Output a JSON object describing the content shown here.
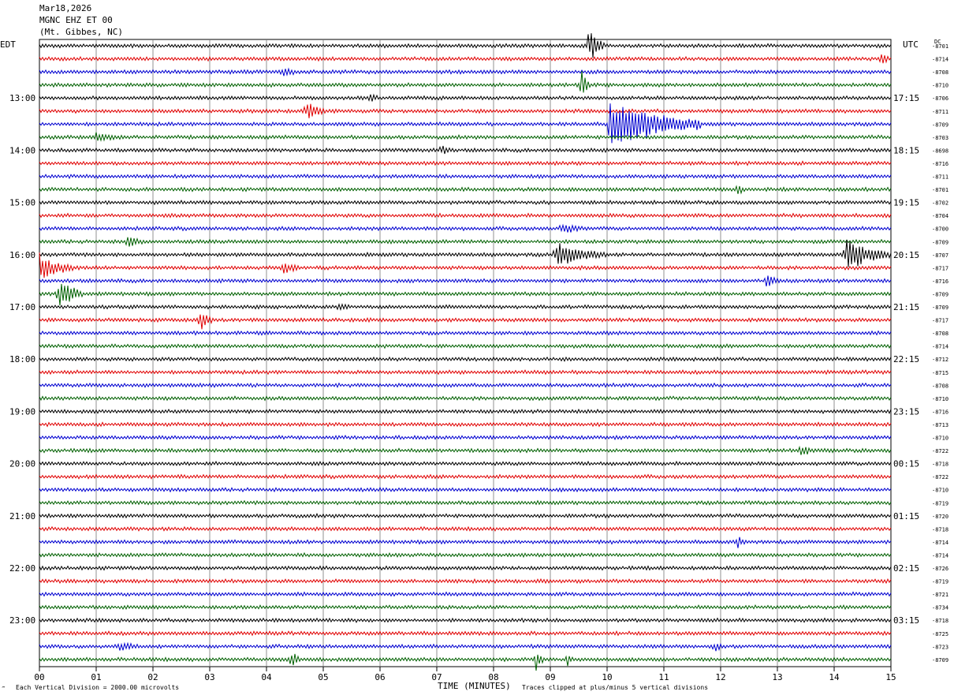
{
  "header": {
    "date": "Mar18,2026",
    "station": "MGNC EHZ ET 00",
    "location": "(Mt. Gibbes, NC)"
  },
  "left_tz": "EDT",
  "right_tz": "UTC",
  "dc_label": "DC",
  "footer": {
    "scale_note": "Each Vertical Division = 2000.00 microvolts",
    "clip_note": "Traces clipped at plus/minus 5 vertical divisions",
    "mark": "‴"
  },
  "colors": {
    "black": "#000000",
    "red": "#e00000",
    "blue": "#0000d0",
    "green": "#006000",
    "grid": "#777777"
  },
  "chart_data": {
    "type": "line",
    "title": "MGNC EHZ ET 00",
    "xlabel": "TIME (MINUTES)",
    "xlim": [
      0,
      15
    ],
    "x_ticks": [
      "00",
      "01",
      "02",
      "03",
      "04",
      "05",
      "06",
      "07",
      "08",
      "09",
      "10",
      "11",
      "12",
      "13",
      "14",
      "15"
    ],
    "trace_minutes": 15,
    "trace_color_cycle": [
      "black",
      "red",
      "blue",
      "green"
    ],
    "left_hour_labels": [
      "13:00",
      "14:00",
      "15:00",
      "16:00",
      "17:00",
      "18:00",
      "19:00",
      "20:00",
      "21:00",
      "22:00",
      "23:00"
    ],
    "right_hour_labels": [
      "17:15",
      "18:15",
      "19:15",
      "20:15",
      "21:15",
      "22:15",
      "23:15",
      "00:15",
      "01:15",
      "02:15",
      "03:15"
    ],
    "first_hour_label_row": 4,
    "dc_offsets": [
      -8701,
      -8714,
      -8708,
      -8710,
      -8706,
      -8711,
      -8709,
      -8703,
      -8698,
      -8716,
      -8711,
      -8701,
      -8702,
      -8704,
      -8700,
      -8709,
      -8707,
      -8717,
      -8716,
      -8709,
      -8709,
      -8717,
      -8708,
      -8714,
      -8712,
      -8715,
      -8708,
      -8710,
      -8716,
      -8713,
      -8710,
      -8722,
      -8718,
      -8722,
      -8710,
      -8719,
      -8720,
      -8718,
      -8714,
      -8714,
      -8726,
      -8719,
      -8721,
      -8734,
      -8718,
      -8725,
      -8723,
      -8709
    ],
    "events": [
      {
        "row": 0,
        "minute": 9.7,
        "amp": 2.2,
        "dur": 0.25
      },
      {
        "row": 1,
        "minute": 14.85,
        "amp": 0.8,
        "dur": 0.1
      },
      {
        "row": 2,
        "minute": 4.3,
        "amp": 0.5,
        "dur": 0.2
      },
      {
        "row": 3,
        "minute": 9.55,
        "amp": 1.5,
        "dur": 0.15
      },
      {
        "row": 4,
        "minute": 5.85,
        "amp": 0.6,
        "dur": 0.1
      },
      {
        "row": 5,
        "minute": 4.7,
        "amp": 0.9,
        "dur": 0.35
      },
      {
        "row": 6,
        "minute": 10.05,
        "amp": 2.6,
        "dur": 1.6
      },
      {
        "row": 7,
        "minute": 1.0,
        "amp": 0.35,
        "dur": 0.5
      },
      {
        "row": 8,
        "minute": 7.1,
        "amp": 0.45,
        "dur": 0.15
      },
      {
        "row": 11,
        "minute": 12.3,
        "amp": 0.45,
        "dur": 0.15
      },
      {
        "row": 14,
        "minute": 9.2,
        "amp": 0.45,
        "dur": 0.4
      },
      {
        "row": 15,
        "minute": 1.55,
        "amp": 0.55,
        "dur": 0.3
      },
      {
        "row": 16,
        "minute": 9.1,
        "amp": 1.0,
        "dur": 0.9
      },
      {
        "row": 16,
        "minute": 14.2,
        "amp": 1.6,
        "dur": 0.8
      },
      {
        "row": 17,
        "minute": 0.0,
        "amp": 1.2,
        "dur": 0.6
      },
      {
        "row": 17,
        "minute": 4.3,
        "amp": 0.55,
        "dur": 0.3
      },
      {
        "row": 18,
        "minute": 12.8,
        "amp": 0.55,
        "dur": 0.3
      },
      {
        "row": 19,
        "minute": 0.35,
        "amp": 1.8,
        "dur": 0.4
      },
      {
        "row": 20,
        "minute": 5.3,
        "amp": 0.35,
        "dur": 0.15
      },
      {
        "row": 21,
        "minute": 2.85,
        "amp": 1.0,
        "dur": 0.2
      },
      {
        "row": 31,
        "minute": 13.4,
        "amp": 0.4,
        "dur": 0.3
      },
      {
        "row": 38,
        "minute": 12.3,
        "amp": 0.45,
        "dur": 0.15
      },
      {
        "row": 46,
        "minute": 1.4,
        "amp": 0.35,
        "dur": 0.4
      },
      {
        "row": 46,
        "minute": 11.9,
        "amp": 0.45,
        "dur": 0.15
      },
      {
        "row": 47,
        "minute": 4.45,
        "amp": 1.0,
        "dur": 0.15
      },
      {
        "row": 47,
        "minute": 8.75,
        "amp": 1.0,
        "dur": 0.15
      },
      {
        "row": 47,
        "minute": 9.3,
        "amp": 0.6,
        "dur": 0.1
      }
    ]
  }
}
